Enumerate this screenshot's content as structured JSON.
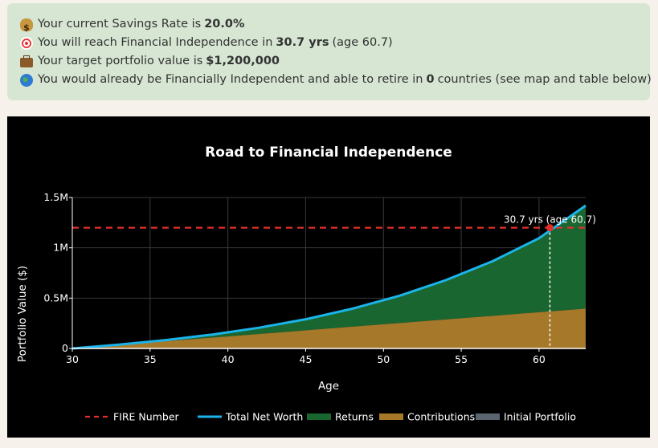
{
  "summary": {
    "line1": {
      "icon": "money-bag-icon",
      "pre": "Your current Savings Rate is",
      "value": "20.0%",
      "post": ""
    },
    "line2": {
      "icon": "target-icon",
      "pre": "You will reach Financial Independence in",
      "value": "30.7 yrs",
      "post": "(age 60.7)"
    },
    "line3": {
      "icon": "briefcase-icon",
      "pre": "Your target portfolio value is",
      "value": "$1,200,000",
      "post": ""
    },
    "line4": {
      "icon": "globe-icon",
      "pre": "You would already be Financially Independent and able to retire in",
      "value": "0",
      "post": "countries (see map and table below)"
    }
  },
  "chart_data": {
    "type": "area",
    "title": "Road to Financial Independence",
    "xlabel": "Age",
    "ylabel": "Portfolio Value ($)",
    "xlim": [
      30,
      63
    ],
    "ylim": [
      0,
      1500000
    ],
    "xticks": [
      30,
      35,
      40,
      45,
      50,
      55,
      60
    ],
    "xtick_labels": [
      "30",
      "35",
      "40",
      "45",
      "50",
      "55",
      "60"
    ],
    "yticks": [
      0,
      500000,
      1000000,
      1500000
    ],
    "ytick_labels": [
      "0",
      "0.5M",
      "1M",
      "1.5M"
    ],
    "grid": true,
    "legend_position": "bottom",
    "x": [
      30,
      33,
      36,
      39,
      42,
      45,
      48,
      51,
      54,
      57,
      60,
      63
    ],
    "series": [
      {
        "name": "FIRE Number",
        "kind": "dashed-line",
        "color": "#e0302a",
        "constant": 1200000
      },
      {
        "name": "Total Net Worth",
        "kind": "line",
        "color": "#1bb4ea",
        "values": [
          0,
          38000,
          83000,
          138000,
          206000,
          290000,
          395000,
          522000,
          678000,
          866000,
          1095000,
          1420000
        ]
      },
      {
        "name": "Returns",
        "kind": "area",
        "color": "#1a6630"
      },
      {
        "name": "Contributions",
        "kind": "area",
        "color": "#a5782a",
        "values": [
          0,
          36000,
          72000,
          108000,
          144000,
          180000,
          216000,
          252000,
          288000,
          324000,
          360000,
          396000
        ]
      },
      {
        "name": "Initial Portfolio",
        "kind": "area",
        "color": "#5b6570",
        "values": [
          0,
          0,
          0,
          0,
          0,
          0,
          0,
          0,
          0,
          0,
          0,
          0
        ]
      }
    ],
    "annotation": {
      "text": "30.7 yrs (age 60.7)",
      "x": 60.7,
      "y": 1200000,
      "marker_color": "#e0302a"
    }
  }
}
